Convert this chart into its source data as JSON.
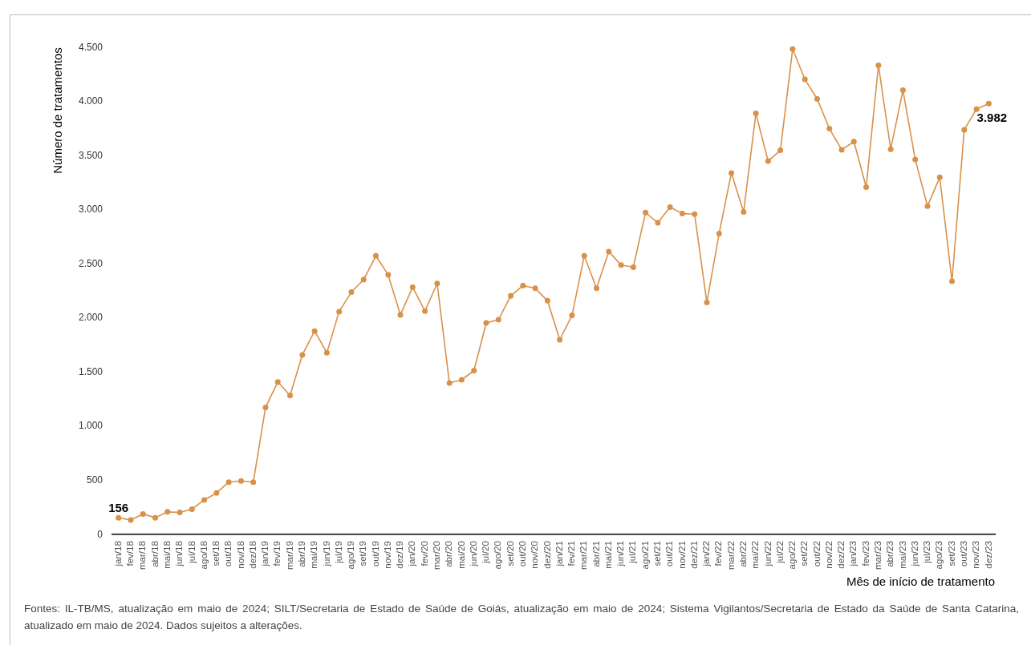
{
  "chart_data": {
    "type": "line",
    "xlabel": "Mês de início de tratamento",
    "ylabel": "Número de tratamentos",
    "categories": [
      "jan/18",
      "fev/18",
      "mar/18",
      "abr/18",
      "mai/18",
      "jun/18",
      "jul/18",
      "ago/18",
      "set/18",
      "out/18",
      "nov/18",
      "dez/18",
      "jan/19",
      "fev/19",
      "mar/19",
      "abr/19",
      "mai/19",
      "jun/19",
      "jul/19",
      "ago/19",
      "set/19",
      "out/19",
      "nov/19",
      "dez/19",
      "jan/20",
      "fev/20",
      "mar/20",
      "abr/20",
      "mai/20",
      "jun/20",
      "jul/20",
      "ago/20",
      "set/20",
      "out/20",
      "nov/20",
      "dez/20",
      "jan/21",
      "fev/21",
      "mar/21",
      "abr/21",
      "mai/21",
      "jun/21",
      "jul/21",
      "ago/21",
      "set/21",
      "out/21",
      "nov/21",
      "dez/21",
      "jan/22",
      "fev/22",
      "mar/22",
      "abr/22",
      "mai/22",
      "jun/22",
      "jul/22",
      "ago/22",
      "set/22",
      "out/22",
      "nov/22",
      "dez/22",
      "jan/23",
      "fev/23",
      "mar/23",
      "abr/23",
      "mai/23",
      "jun/23",
      "jul/23",
      "ago/23",
      "set/23",
      "out/23",
      "nov/23",
      "dez/23"
    ],
    "series": [
      {
        "color": "#d9914a",
        "values": [
          156,
          135,
          190,
          156,
          210,
          205,
          235,
          320,
          385,
          485,
          495,
          485,
          1175,
          1410,
          1285,
          1660,
          1880,
          1680,
          2060,
          2240,
          2355,
          2575,
          2400,
          2030,
          2285,
          2065,
          2320,
          1400,
          1430,
          1515,
          1955,
          1985,
          2205,
          2300,
          2275,
          2160,
          1800,
          2025,
          2575,
          2275,
          2615,
          2490,
          2470,
          2975,
          2880,
          3025,
          2965,
          2960,
          2145,
          2780,
          3340,
          2980,
          3890,
          3450,
          3550,
          4485,
          4205,
          4025,
          3750,
          3555,
          3630,
          3210,
          4335,
          3560,
          4105,
          3465,
          3035,
          3300,
          2340,
          3740,
          3930,
          3982
        ],
        "value_labels": [
          "156",
          null,
          null,
          null,
          null,
          null,
          null,
          null,
          null,
          null,
          null,
          null,
          null,
          null,
          null,
          null,
          null,
          null,
          null,
          null,
          null,
          null,
          null,
          null,
          null,
          null,
          null,
          null,
          null,
          null,
          null,
          null,
          null,
          null,
          null,
          null,
          null,
          null,
          null,
          null,
          null,
          null,
          null,
          null,
          null,
          null,
          null,
          null,
          null,
          null,
          null,
          null,
          null,
          null,
          null,
          null,
          null,
          null,
          null,
          null,
          null,
          null,
          null,
          null,
          null,
          null,
          null,
          null,
          null,
          null,
          null,
          "3.982"
        ]
      }
    ],
    "ylim": [
      0,
      4500
    ],
    "yticks": [
      {
        "value": 0,
        "label": "0"
      },
      {
        "value": 500,
        "label": "500"
      },
      {
        "value": 1000,
        "label": "1.000"
      },
      {
        "value": 1500,
        "label": "1.500"
      },
      {
        "value": 2000,
        "label": "2.000"
      },
      {
        "value": 2500,
        "label": "2.500"
      },
      {
        "value": 3000,
        "label": "3.000"
      },
      {
        "value": 3500,
        "label": "3.500"
      },
      {
        "value": 4000,
        "label": "4.000"
      },
      {
        "value": 4500,
        "label": "4.500"
      }
    ],
    "grid": false,
    "legend": false,
    "marker": "circle",
    "line_style": "solid",
    "annotations": [
      "Fontes: IL-TB/MS, atualização em maio de 2024; SILT/Secretaria de Estado de Saúde de Goiás, atualização em maio de 2024; Sistema Vigilantos/Secretaria de Estado da Saúde de Santa Catarina, atualizado em maio de 2024. Dados sujeitos a alterações."
    ]
  }
}
